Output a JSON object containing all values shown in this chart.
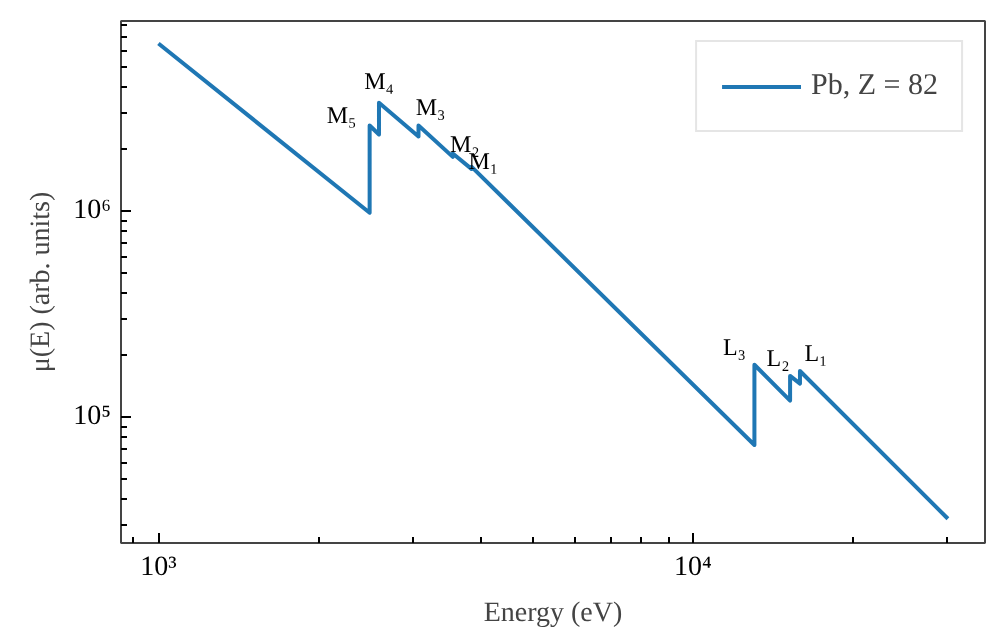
{
  "chart_data": {
    "type": "line",
    "xlabel": "Energy (eV)",
    "ylabel": "μ(E) (arb. units)",
    "log": "xy",
    "grid": false,
    "legend": "top right",
    "marker": "none",
    "line_style": "solid",
    "xlim": [
      851,
      35200
    ],
    "ylim": [
      24400,
      8360000
    ],
    "xticks": [
      {
        "value": 1000,
        "label": "10³"
      },
      {
        "value": 10000,
        "label": "10⁴"
      }
    ],
    "yticks": [
      {
        "value": 100000,
        "label": "10⁵"
      },
      {
        "value": 1000000,
        "label": "10⁶"
      }
    ],
    "series": [
      {
        "name": "Pb, Z = 82",
        "color": "#1f77b4",
        "x": [
          1000,
          2484,
          2484,
          2586,
          2586,
          3066,
          3066,
          3554,
          3554,
          3851,
          3851,
          13035,
          13035,
          15200,
          15200,
          15861,
          15861,
          30000
        ],
        "values": [
          6500000,
          980000,
          2600000,
          2350000,
          3350000,
          2300000,
          2600000,
          1830000,
          1900000,
          1600000,
          1640000,
          73000,
          179000,
          120000,
          158000,
          145000,
          167000,
          32000
        ]
      }
    ],
    "annotations": [
      {
        "text": "M₅",
        "x": 2484,
        "y": 2600000
      },
      {
        "text": "M₄",
        "x": 2586,
        "y": 3350000
      },
      {
        "text": "M₃",
        "x": 3066,
        "y": 2600000
      },
      {
        "text": "M₂",
        "x": 3554,
        "y": 1900000
      },
      {
        "text": "M₁",
        "x": 3851,
        "y": 1640000
      },
      {
        "text": "L₃",
        "x": 13035,
        "y": 179000
      },
      {
        "text": "L₂",
        "x": 15200,
        "y": 158000
      },
      {
        "text": "L₁",
        "x": 15861,
        "y": 167000
      }
    ]
  }
}
